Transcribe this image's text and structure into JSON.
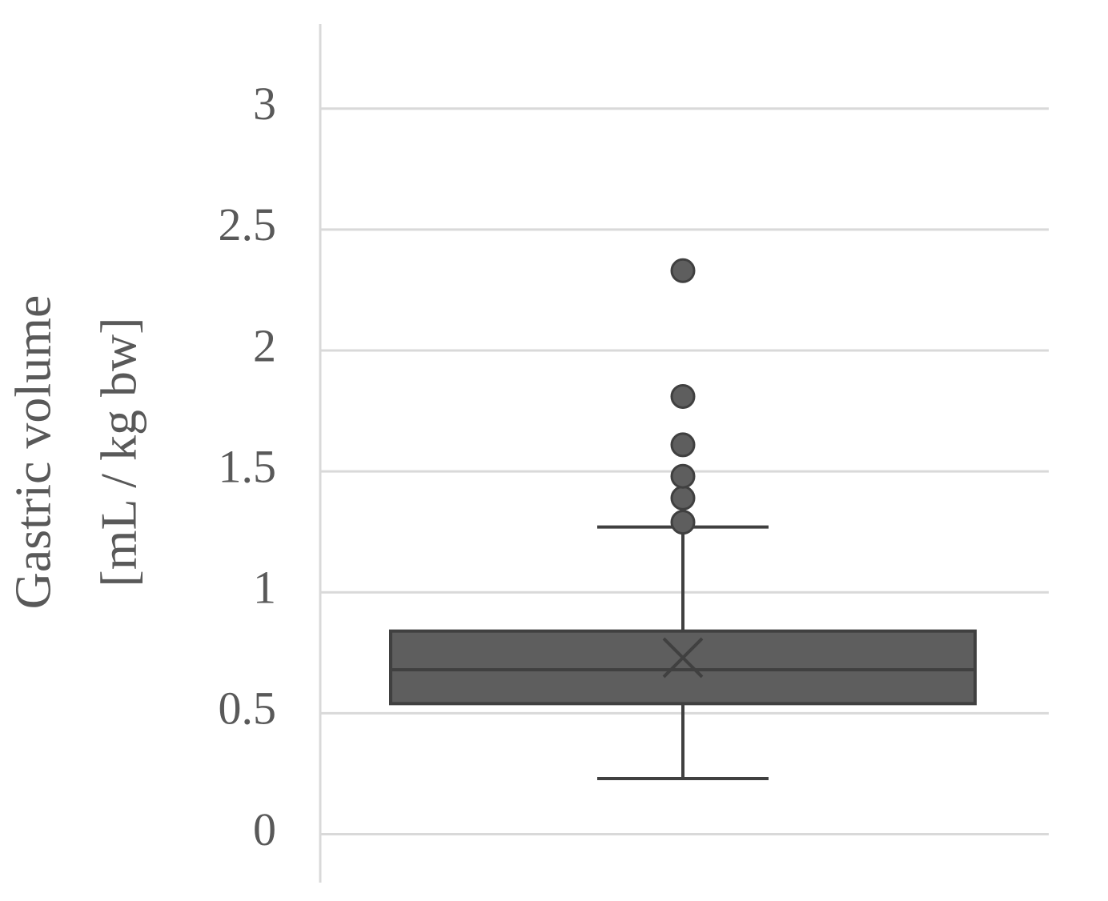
{
  "chart_data": {
    "type": "box",
    "y_label": [
      "Gastric volume",
      "[mL / kg bw]"
    ],
    "box": {
      "whislo": 0.23,
      "q1": 0.54,
      "med": 0.68,
      "q3": 0.84,
      "whishi": 1.27,
      "mean": 0.73,
      "fliers": [
        1.29,
        1.39,
        1.48,
        1.61,
        1.81,
        2.33
      ]
    },
    "color": "#5e5e5e",
    "ylim": [
      -0.2,
      3.35
    ],
    "yticks": [
      0,
      0.5,
      1,
      1.5,
      2,
      2.5,
      3
    ],
    "grid": true
  }
}
